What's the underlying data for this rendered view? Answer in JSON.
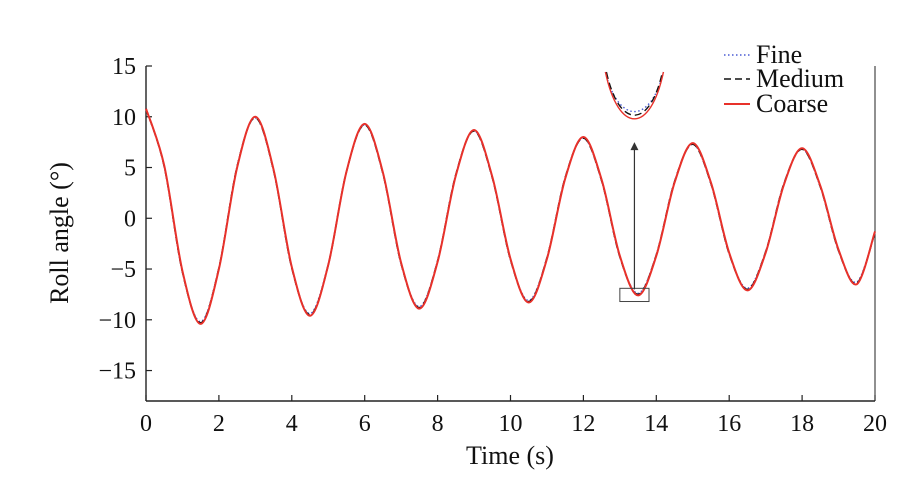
{
  "chart_data": {
    "type": "line",
    "title": "",
    "xlabel": "Time (s)",
    "ylabel": "Roll angle (°)",
    "xlim": [
      0,
      20
    ],
    "ylim": [
      -18,
      15
    ],
    "xticks": [
      "0",
      "2",
      "4",
      "6",
      "8",
      "10",
      "12",
      "14",
      "16",
      "18",
      "20"
    ],
    "yticks": [
      "15",
      "10",
      "5",
      "0",
      "−5",
      "−10",
      "−15"
    ],
    "grid": false,
    "legend_position": "top-right",
    "series": [
      {
        "name": "Fine",
        "color": "#4a5bd4",
        "style": "dotted",
        "x": [
          0,
          0.5,
          1,
          1.5,
          2,
          2.5,
          3,
          3.5,
          4,
          4.5,
          5,
          5.5,
          6,
          6.5,
          7,
          7.5,
          8,
          8.5,
          9,
          9.5,
          10,
          10.5,
          11,
          11.5,
          12,
          12.5,
          13,
          13.5,
          14,
          14.5,
          15,
          15.5,
          16,
          16.5,
          17,
          17.5,
          18,
          18.5,
          19,
          19.5,
          20
        ],
        "y": [
          10.8,
          5.1,
          -5.3,
          -10.2,
          -4.9,
          5.1,
          9.9,
          4.7,
          -4.9,
          -9.4,
          -4.5,
          4.6,
          9.2,
          4.4,
          -4.5,
          -8.7,
          -4.2,
          4.3,
          8.6,
          4.0,
          -4.1,
          -8.1,
          -3.9,
          4.0,
          7.9,
          3.7,
          -3.8,
          -7.4,
          -3.6,
          3.6,
          7.3,
          3.4,
          -3.5,
          -6.9,
          -3.3,
          3.4,
          6.8,
          3.1,
          -3.2,
          -6.3,
          -1.4
        ]
      },
      {
        "name": "Medium",
        "color": "#111111",
        "style": "dashed",
        "x": [
          0,
          0.5,
          1,
          1.5,
          2,
          2.5,
          3,
          3.5,
          4,
          4.5,
          5,
          5.5,
          6,
          6.5,
          7,
          7.5,
          8,
          8.5,
          9,
          9.5,
          10,
          10.5,
          11,
          11.5,
          12,
          12.5,
          13,
          13.5,
          14,
          14.5,
          15,
          15.5,
          16,
          16.5,
          17,
          17.5,
          18,
          18.5,
          19,
          19.5,
          20
        ],
        "y": [
          10.8,
          5.1,
          -5.3,
          -10.3,
          -4.9,
          5.1,
          9.9,
          4.7,
          -4.9,
          -9.5,
          -4.6,
          4.6,
          9.2,
          4.4,
          -4.5,
          -8.8,
          -4.2,
          4.3,
          8.6,
          4.0,
          -4.1,
          -8.2,
          -3.9,
          4.0,
          7.9,
          3.7,
          -3.8,
          -7.5,
          -3.6,
          3.6,
          7.3,
          3.4,
          -3.5,
          -7.0,
          -3.3,
          3.4,
          6.8,
          3.1,
          -3.2,
          -6.4,
          -1.4
        ]
      },
      {
        "name": "Coarse",
        "color": "#e8312a",
        "style": "solid",
        "x": [
          0,
          0.5,
          1,
          1.5,
          2,
          2.5,
          3,
          3.5,
          4,
          4.5,
          5,
          5.5,
          6,
          6.5,
          7,
          7.5,
          8,
          8.5,
          9,
          9.5,
          10,
          10.5,
          11,
          11.5,
          12,
          12.5,
          13,
          13.5,
          14,
          14.5,
          15,
          15.5,
          16,
          16.5,
          17,
          17.5,
          18,
          18.5,
          19,
          19.5,
          20
        ],
        "y": [
          10.8,
          5.2,
          -5.2,
          -10.4,
          -5.0,
          5.0,
          10.0,
          4.8,
          -4.8,
          -9.6,
          -4.6,
          4.6,
          9.3,
          4.5,
          -4.4,
          -8.9,
          -4.3,
          4.2,
          8.7,
          4.1,
          -4.0,
          -8.3,
          -4.0,
          3.9,
          8.0,
          3.8,
          -3.7,
          -7.6,
          -3.7,
          3.5,
          7.4,
          3.5,
          -3.4,
          -7.1,
          -3.4,
          3.3,
          6.9,
          3.2,
          -3.1,
          -6.5,
          -1.3
        ]
      }
    ],
    "annotations": [
      {
        "type": "zoom-box",
        "x": [
          13.0,
          13.8
        ],
        "y": [
          -8.2,
          -6.9
        ]
      },
      {
        "type": "arrow",
        "from": [
          13.4,
          -7.0
        ],
        "to": [
          13.4,
          7.5
        ]
      }
    ]
  }
}
